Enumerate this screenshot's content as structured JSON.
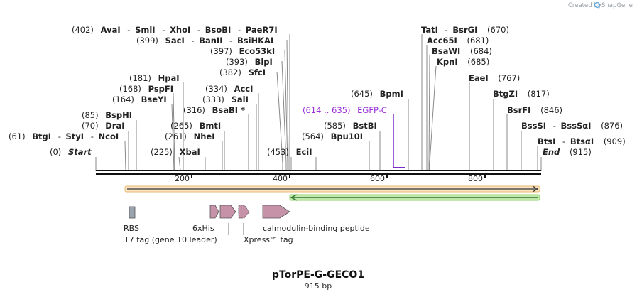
{
  "credit": {
    "created_by": "Created by",
    "brand": "SnapGene"
  },
  "title": "pTorPE-G-GECO1",
  "length": "915 bp",
  "ruler_ticks": [
    "200",
    "400",
    "600",
    "800"
  ],
  "sites": [
    {
      "pos": "(402)",
      "name": "AvaI"
    },
    {
      "pos": "",
      "name": "SmlI"
    },
    {
      "pos": "",
      "name": "XhoI"
    },
    {
      "pos": "",
      "name": "BsoBI"
    },
    {
      "pos": "",
      "name": "PaeR7I"
    },
    {
      "pos": "(399)",
      "name": "SacI"
    },
    {
      "pos": "",
      "name": "BanII"
    },
    {
      "pos": "",
      "name": "BsiHKAI"
    },
    {
      "pos": "(397)",
      "name": "Eco53kI"
    },
    {
      "pos": "(393)",
      "name": "BlpI"
    },
    {
      "pos": "(382)",
      "name": "SfcI"
    },
    {
      "pos": "(334)",
      "name": "AccI"
    },
    {
      "pos": "(333)",
      "name": "SalI"
    },
    {
      "pos": "(316)",
      "name": "BsaBI *"
    },
    {
      "pos": "(181)",
      "name": "HpaI"
    },
    {
      "pos": "(168)",
      "name": "PspFI"
    },
    {
      "pos": "(164)",
      "name": "BseYI"
    },
    {
      "pos": "(85)",
      "name": "BspHI"
    },
    {
      "pos": "(70)",
      "name": "DraI"
    },
    {
      "pos": "(61)",
      "name": "BtgI"
    },
    {
      "pos": "",
      "name": "StyI"
    },
    {
      "pos": "",
      "name": "NcoI"
    },
    {
      "pos": "(265)",
      "name": "BmtI"
    },
    {
      "pos": "(261)",
      "name": "NheI"
    },
    {
      "pos": "(225)",
      "name": "XbaI"
    },
    {
      "pos": "(453)",
      "name": "EciI"
    },
    {
      "pos": "(645)",
      "name": "BpmI"
    },
    {
      "pos": "(585)",
      "name": "BstBI"
    },
    {
      "pos": "(564)",
      "name": "Bpu10I"
    },
    {
      "pos": "(670)",
      "name": "TatI"
    },
    {
      "pos": "",
      "name": "BsrGI"
    },
    {
      "pos": "(681)",
      "name": "Acc65I"
    },
    {
      "pos": "(684)",
      "name": "BsaWI"
    },
    {
      "pos": "(685)",
      "name": "KpnI"
    },
    {
      "pos": "(767)",
      "name": "EaeI"
    },
    {
      "pos": "(817)",
      "name": "BtgZI"
    },
    {
      "pos": "(846)",
      "name": "BsrFI"
    },
    {
      "pos": "(876)",
      "name": "BssSI"
    },
    {
      "pos": "",
      "name": "BssSαI"
    },
    {
      "pos": "(909)",
      "name": "BtsI"
    },
    {
      "pos": "",
      "name": "BtsαI"
    }
  ],
  "start": {
    "pos": "(0)",
    "label": "Start"
  },
  "end": {
    "pos": "(915)",
    "label": "End"
  },
  "primer": {
    "pos": "(614 .. 635)",
    "label": "EGFP-C"
  },
  "features": [
    "RBS",
    "T7 tag (gene 10 leader)",
    "6xHis",
    "Xpress™ tag",
    "calmodulin-binding peptide"
  ],
  "colors": {
    "orange_feature": "#e0a050",
    "green_feature": "#2e8b2e",
    "cut_line": "#888888",
    "feature_pink": "#c592a8",
    "rbs_gray": "#9ba3ad",
    "primer_purple": "#7a2bc8"
  }
}
